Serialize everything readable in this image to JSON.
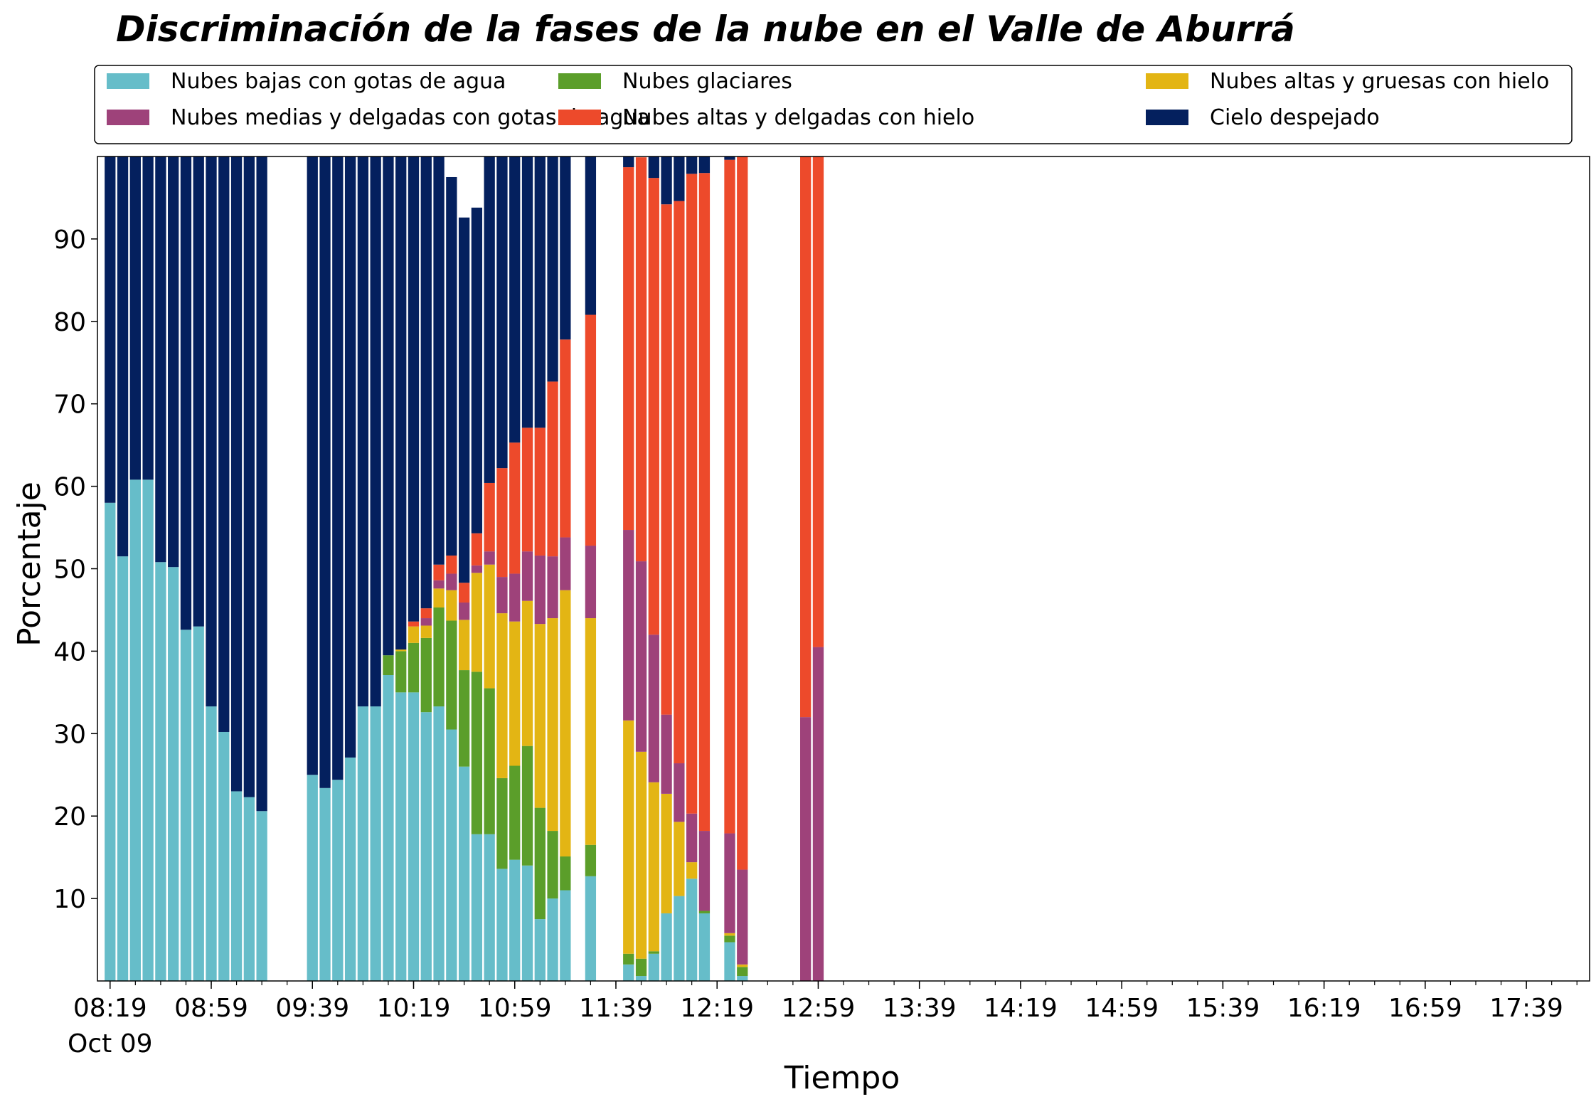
{
  "chart_data": {
    "type": "bar",
    "stacked": true,
    "title": "Discriminación de la fases de la nube en el Valle de Aburrá",
    "xlabel": "Tiempo",
    "ylabel": "Porcentaje",
    "ylim": [
      0,
      100
    ],
    "yticks": [
      10,
      20,
      30,
      40,
      50,
      60,
      70,
      80,
      90
    ],
    "x_start_minutes": 499,
    "bar_step_minutes": 5,
    "xlim_minutes": [
      494,
      1084
    ],
    "minor_tick_interval_minutes": 10,
    "xticks": [
      {
        "minute": 499,
        "label": "08:19",
        "sublabel": "Oct 09"
      },
      {
        "minute": 539,
        "label": "08:59"
      },
      {
        "minute": 579,
        "label": "09:39"
      },
      {
        "minute": 619,
        "label": "10:19"
      },
      {
        "minute": 659,
        "label": "10:59"
      },
      {
        "minute": 699,
        "label": "11:39"
      },
      {
        "minute": 739,
        "label": "12:19"
      },
      {
        "minute": 779,
        "label": "12:59"
      },
      {
        "minute": 819,
        "label": "13:39"
      },
      {
        "minute": 859,
        "label": "14:19"
      },
      {
        "minute": 899,
        "label": "14:59"
      },
      {
        "minute": 939,
        "label": "15:39"
      },
      {
        "minute": 979,
        "label": "16:19"
      },
      {
        "minute": 1019,
        "label": "16:59"
      },
      {
        "minute": 1059,
        "label": "17:39"
      }
    ],
    "legend_position": "top",
    "series": [
      {
        "name": "Nubes bajas con gotas de agua",
        "color": "#66bdc9",
        "values": [
          58,
          51.5,
          60.8,
          60.8,
          50.8,
          50.2,
          42.6,
          43,
          33.3,
          30.2,
          23,
          22.3,
          20.6,
          null,
          null,
          null,
          25,
          23.4,
          24.4,
          27.1,
          33.3,
          33.3,
          37.1,
          35,
          35,
          32.6,
          33.3,
          30.5,
          26,
          17.8,
          17.8,
          13.6,
          14.7,
          14,
          7.5,
          10,
          11,
          null,
          12.7,
          null,
          null,
          2,
          0.6,
          3.3,
          8.2,
          10.3,
          12.4,
          8.2,
          null,
          4.7,
          0.6,
          null,
          null,
          null,
          null,
          0,
          0
        ]
      },
      {
        "name": "Nubes glaciares",
        "color": "#5b9e2a",
        "values": [
          0,
          0,
          0,
          0,
          0,
          0,
          0,
          0,
          0,
          0,
          0,
          0,
          0,
          null,
          null,
          null,
          0,
          0,
          0,
          0,
          0,
          0,
          2.4,
          5,
          6,
          9,
          12,
          13.2,
          11.7,
          19.7,
          17.7,
          11,
          11.4,
          14.5,
          13.5,
          8.2,
          4.1,
          null,
          3.8,
          null,
          null,
          1.3,
          2.1,
          0.3,
          0,
          0,
          0,
          0.3,
          null,
          0.8,
          1.1,
          null,
          null,
          null,
          null,
          0,
          0
        ]
      },
      {
        "name": "Nubes altas y gruesas con hielo",
        "color": "#e3b514",
        "values": [
          0,
          0,
          0,
          0,
          0,
          0,
          0,
          0,
          0,
          0,
          0,
          0,
          0,
          null,
          null,
          null,
          0,
          0,
          0,
          0,
          0,
          0,
          0,
          0.2,
          2,
          1.5,
          2.3,
          3.7,
          6.1,
          12,
          15,
          20,
          17.5,
          17.6,
          22.3,
          25.8,
          32.3,
          null,
          27.5,
          null,
          null,
          28.3,
          25.1,
          20.5,
          14.5,
          9,
          2,
          0,
          null,
          0.3,
          0.3,
          null,
          null,
          null,
          null,
          0,
          0
        ]
      },
      {
        "name": "Nubes medias y delgadas con gotas de agua",
        "color": "#9e427a",
        "values": [
          0,
          0,
          0,
          0,
          0,
          0,
          0,
          0,
          0,
          0,
          0,
          0,
          0,
          null,
          null,
          null,
          0,
          0,
          0,
          0,
          0,
          0,
          0,
          0,
          0,
          0.9,
          1,
          2,
          2.1,
          0.9,
          1.6,
          4.4,
          5.8,
          6,
          8.3,
          7.5,
          6.4,
          null,
          8.8,
          null,
          null,
          23.1,
          23.1,
          17.9,
          9.6,
          7.1,
          5.9,
          9.7,
          null,
          12.1,
          11.5,
          null,
          null,
          null,
          null,
          32,
          40.5
        ]
      },
      {
        "name": "Nubes altas y delgadas con hielo",
        "color": "#ed4a2b",
        "values": [
          0,
          0,
          0,
          0,
          0,
          0,
          0,
          0,
          0,
          0,
          0,
          0,
          0,
          null,
          null,
          null,
          0,
          0,
          0,
          0,
          0,
          0,
          0,
          0,
          0.6,
          1.2,
          1.9,
          2.2,
          2.4,
          3.9,
          8.3,
          13.2,
          15.9,
          15,
          15.5,
          21.2,
          24,
          null,
          28,
          null,
          null,
          44,
          49,
          55.4,
          61.9,
          68.2,
          77.6,
          79.8,
          null,
          81.7,
          86.5,
          null,
          null,
          null,
          null,
          68,
          59.5
        ]
      },
      {
        "name": "Cielo despejado",
        "color": "#04205e",
        "values": [
          42,
          48.5,
          39.2,
          39.2,
          49.2,
          49.8,
          57.4,
          57,
          66.7,
          69.8,
          77,
          77.7,
          79.4,
          null,
          null,
          null,
          75,
          76.6,
          75.6,
          72.9,
          66.7,
          66.7,
          60.5,
          59.8,
          56.4,
          54.8,
          49.5,
          45.9,
          44.3,
          39.5,
          39.6,
          37.8,
          34.7,
          32.9,
          32.9,
          27.3,
          22.2,
          null,
          19.2,
          null,
          null,
          1.3,
          0,
          2.6,
          5.8,
          5.4,
          2.1,
          2,
          null,
          0.7,
          0,
          null,
          null,
          null,
          null,
          0,
          0
        ]
      }
    ]
  }
}
